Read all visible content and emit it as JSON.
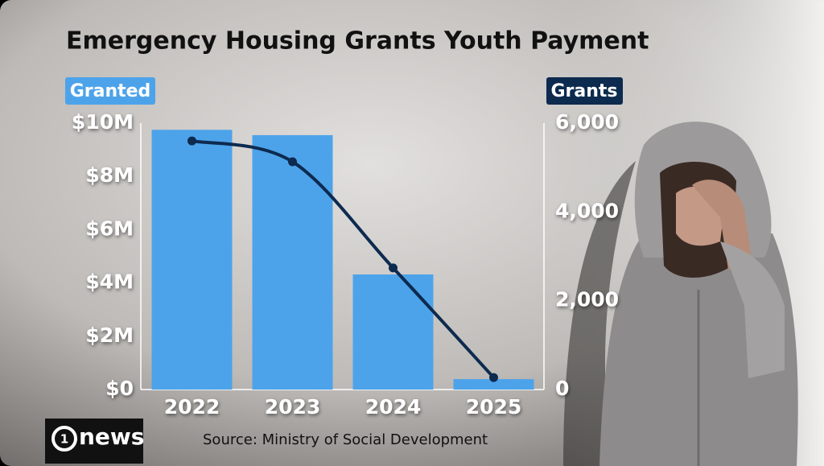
{
  "chart_data": {
    "type": "bar-line",
    "title": "Emergency Housing Grants Youth Payment",
    "source": "Source: Ministry of Social Development",
    "logo_number": "1",
    "logo": "news",
    "categories": [
      "2022",
      "2023",
      "2024",
      "2025"
    ],
    "series": [
      {
        "name": "Granted",
        "type": "bar",
        "color": "#4da3ea",
        "values": [
          9750000,
          9550000,
          4320000,
          390000
        ]
      },
      {
        "name": "Grants",
        "type": "line",
        "axis": "y2",
        "color": "#0d2a4f",
        "values": [
          5600,
          5130,
          2740,
          270
        ]
      }
    ],
    "ylim": [
      0,
      10000000
    ],
    "yticks": [
      0,
      {
        "value": 2000000,
        "label": "$2M"
      },
      {
        "value": 4000000,
        "label": "$4M"
      },
      {
        "value": 6000000,
        "label": "$6M"
      },
      {
        "value": 8000000,
        "label": "$8M"
      },
      {
        "value": 10000000,
        "label": "$10M"
      }
    ],
    "yticks_zero_label": "$0",
    "y2lim": [
      0,
      6000
    ],
    "y2ticks": [
      0,
      {
        "value": 2000,
        "label": "2,000"
      },
      {
        "value": 4000,
        "label": "4,000"
      },
      {
        "value": 6000,
        "label": "6,000"
      }
    ]
  }
}
